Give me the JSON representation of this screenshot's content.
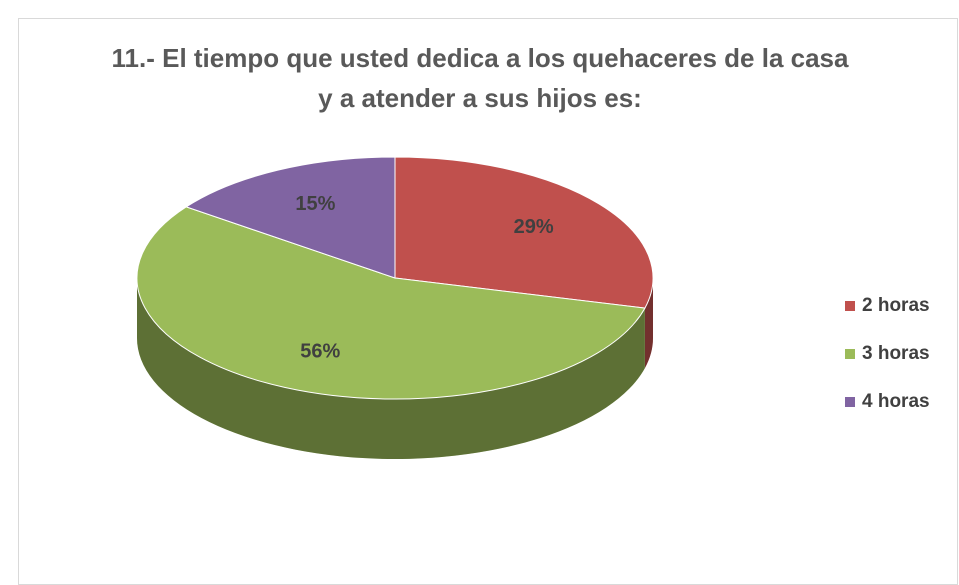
{
  "chart_data": {
    "type": "pie",
    "title": "11.- El tiempo que usted dedica a los quehaceres de la casa y a atender a sus hijos es:",
    "categories": [
      "2 horas",
      "3 horas",
      "4 horas"
    ],
    "values": [
      29,
      56,
      15
    ],
    "value_labels": [
      "29%",
      "56%",
      "15%"
    ],
    "colors": [
      "#c0504d",
      "#9bbb59",
      "#8064a2"
    ],
    "legend": "right"
  }
}
